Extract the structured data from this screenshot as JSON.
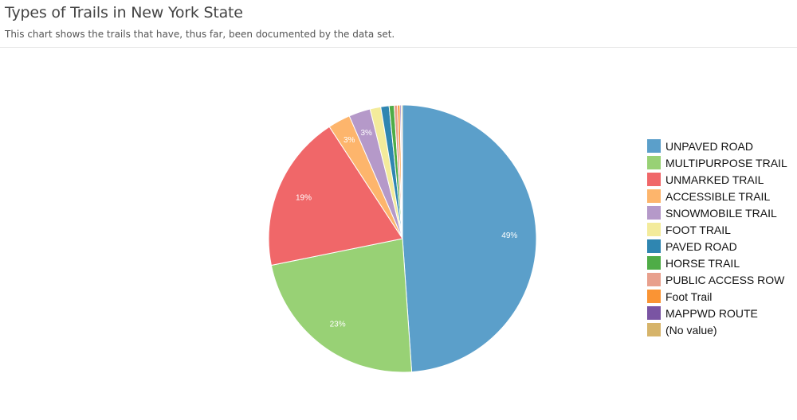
{
  "header": {
    "title": "Types of Trails in New York State",
    "subtitle": "This chart shows the trails that have, thus far, been documented by the data set."
  },
  "chart_data": {
    "type": "pie",
    "title": "Types of Trails in New York State",
    "subtitle": "This chart shows the trails that have, thus far, been documented by the data set.",
    "categories": [
      "UNPAVED ROAD",
      "MULTIPURPOSE TRAIL",
      "UNMARKED TRAIL",
      "ACCESSIBLE TRAIL",
      "SNOWMOBILE TRAIL",
      "FOOT TRAIL",
      "PAVED ROAD",
      "HORSE TRAIL",
      "PUBLIC ACCESS ROW",
      "Foot Trail",
      "MAPPWD ROUTE",
      "(No value)"
    ],
    "values": [
      48.9,
      22.9,
      19.0,
      2.7,
      2.6,
      1.3,
      1.0,
      0.6,
      0.4,
      0.3,
      0.15,
      0.15
    ],
    "data_labels": [
      "49%",
      "23%",
      "19%",
      "3%",
      "3%",
      "",
      "",
      "",
      "",
      "",
      "",
      ""
    ],
    "colors": [
      "#5b9fca",
      "#98d175",
      "#f06769",
      "#fdb56c",
      "#b599c9",
      "#f3eb9b",
      "#2f86b1",
      "#4fac47",
      "#e8a08d",
      "#fa9434",
      "#7a54a3",
      "#d6b46a"
    ],
    "legend_position": "right"
  }
}
